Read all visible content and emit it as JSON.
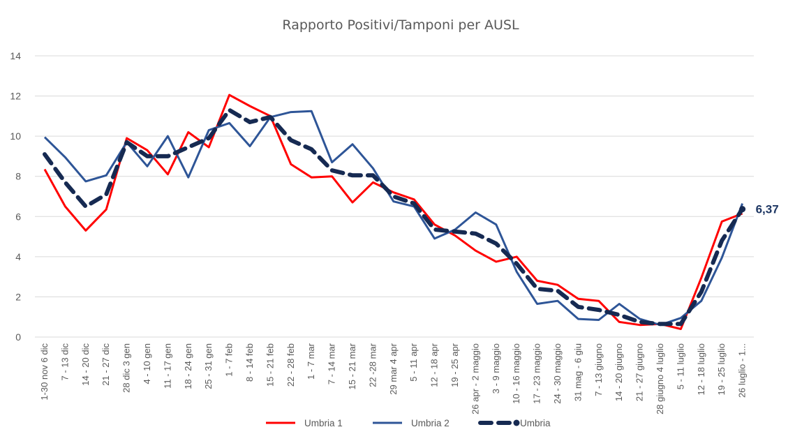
{
  "chart_data": {
    "type": "line",
    "title": "Rapporto Positivi/Tamponi per AUSL",
    "xlabel": "",
    "ylabel": "",
    "ylim": [
      0,
      14
    ],
    "yticks": [
      0,
      2,
      4,
      6,
      8,
      10,
      12,
      14
    ],
    "grid": true,
    "legend_position": "bottom",
    "categories": [
      "1-30 nov 6 dic",
      "7 - 13 dic",
      "14 - 20 dic",
      "21 - 27 dic",
      "28 dic 3 gen",
      "4 - 10 gen",
      "11 - 17 gen",
      "18 - 24 gen",
      "25 - 31 gen",
      "1 - 7 feb",
      "8 - 14 feb",
      "15 - 21 feb",
      "22 - 28 feb",
      "1 - 7 mar",
      "7 - 14 mar",
      "15 - 21 mar",
      "22 -28 mar",
      "29 mar 4 apr",
      "5 - 11 apr",
      "12 - 18 apr",
      "19 - 25 apr",
      "26 apr - 2 maggio",
      "3 - 9 maggio",
      "10 - 16 maggio",
      "17 - 23 maggio",
      "24 - 30 maggio",
      "31 mag - 6 giu",
      "7 - 13 giugno",
      "14 - 20 giugno",
      "21 - 27 giugno",
      "28 giugno 4 luglio",
      "5 - 11 luglio",
      "12 - 18 luglio",
      "19 - 25 luglio",
      "26 luglio - 1..."
    ],
    "series": [
      {
        "name": "Umbria 1",
        "color": "#ff0000",
        "style": "solid",
        "values": [
          8.35,
          6.5,
          5.3,
          6.35,
          9.9,
          9.3,
          8.1,
          10.2,
          9.45,
          12.05,
          11.5,
          11.0,
          8.6,
          7.95,
          8.0,
          6.7,
          7.7,
          7.2,
          6.85,
          5.6,
          5.05,
          4.3,
          3.75,
          4.0,
          2.8,
          2.6,
          1.9,
          1.8,
          0.75,
          0.6,
          0.65,
          0.4,
          2.95,
          5.75,
          6.15
        ]
      },
      {
        "name": "Umbria 2",
        "color": "#2e5597",
        "style": "solid",
        "values": [
          9.95,
          8.95,
          7.75,
          8.05,
          9.7,
          8.5,
          10.0,
          7.95,
          10.3,
          10.65,
          9.5,
          10.95,
          11.2,
          11.25,
          8.7,
          9.6,
          8.4,
          6.75,
          6.5,
          4.9,
          5.35,
          6.2,
          5.6,
          3.25,
          1.65,
          1.8,
          0.9,
          0.85,
          1.65,
          0.9,
          0.6,
          0.95,
          1.8,
          3.95,
          6.65
        ]
      },
      {
        "name": "Umbria",
        "color": "#162a52",
        "style": "dashed",
        "values": [
          9.1,
          7.7,
          6.5,
          7.1,
          9.7,
          9.0,
          9.0,
          9.45,
          9.9,
          11.3,
          10.7,
          10.95,
          9.8,
          9.35,
          8.3,
          8.05,
          8.05,
          7.0,
          6.65,
          5.35,
          5.25,
          5.15,
          4.65,
          3.65,
          2.4,
          2.3,
          1.5,
          1.35,
          1.1,
          0.75,
          0.65,
          0.65,
          2.25,
          4.8,
          6.37
        ]
      }
    ],
    "end_label": "6,37"
  }
}
